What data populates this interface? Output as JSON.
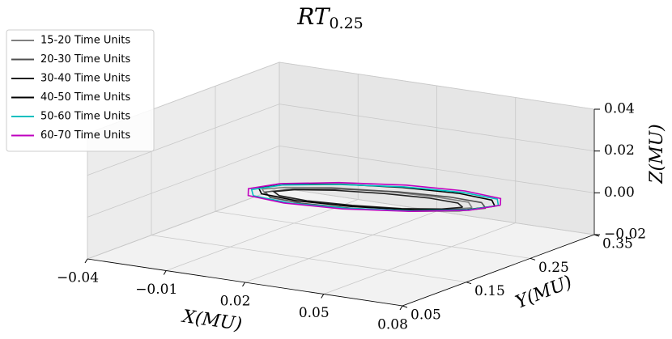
{
  "chart_data": {
    "type": "line3d",
    "title": "RT",
    "title_subscript": "0.25",
    "xlabel": "X(MU)",
    "ylabel": "Y(MU)",
    "zlabel": "Z(MU)",
    "xlim": [
      -0.04,
      0.08
    ],
    "ylim": [
      0.05,
      0.35
    ],
    "zlim": [
      -0.02,
      0.04
    ],
    "xticks": [
      {
        "value": -0.04,
        "label": "−0.04"
      },
      {
        "value": -0.01,
        "label": "−0.01"
      },
      0.02,
      0.05,
      0.08
    ],
    "yticks": [
      0.05,
      0.15,
      0.25,
      0.35
    ],
    "zticks": [
      {
        "value": -0.02,
        "label": "−0.02"
      },
      {
        "value": 0,
        "label": "0.00"
      },
      0.02,
      0.04
    ],
    "grid": true,
    "legend_position": "upper left",
    "series": [
      {
        "name": "15-20 Time Units",
        "color": "#808080",
        "x": [
          0.07,
          0.065,
          0.05,
          0.03,
          0.01,
          -0.005,
          -0.01,
          -0.005,
          0.01,
          0.03,
          0.05,
          0.065,
          0.07
        ],
        "y": [
          0.2,
          0.215,
          0.226,
          0.23,
          0.226,
          0.215,
          0.2,
          0.185,
          0.174,
          0.17,
          0.174,
          0.185,
          0.2
        ],
        "z": [
          0.008,
          0.008,
          0.0065,
          0.005,
          0.0035,
          0.002,
          0.002,
          0.002,
          0.0035,
          0.005,
          0.0065,
          0.008,
          0.008
        ]
      },
      {
        "name": "20-30 Time Units",
        "color": "#505050",
        "x": [
          0.074,
          0.068,
          0.053,
          0.032,
          0.011,
          -0.004,
          -0.01,
          -0.004,
          0.011,
          0.032,
          0.053,
          0.068,
          0.074
        ],
        "y": [
          0.205,
          0.223,
          0.235,
          0.24,
          0.235,
          0.223,
          0.205,
          0.188,
          0.175,
          0.17,
          0.175,
          0.188,
          0.205
        ],
        "z": [
          0.008,
          0.0075,
          0.006,
          0.004,
          0.002,
          0.0005,
          0,
          0.0005,
          0.002,
          0.004,
          0.006,
          0.0075,
          0.008
        ]
      },
      {
        "name": "30-40 Time Units",
        "color": "#202020",
        "x": [
          0.064,
          0.059,
          0.046,
          0.028,
          0.01,
          -0.003,
          -0.008,
          -0.003,
          0.01,
          0.028,
          0.046,
          0.059,
          0.064
        ],
        "y": [
          0.21,
          0.223,
          0.232,
          0.235,
          0.232,
          0.223,
          0.21,
          0.198,
          0.188,
          0.185,
          0.188,
          0.198,
          0.21
        ],
        "z": [
          0.006,
          0.0056,
          0.0045,
          0.003,
          0.0015,
          0.0004,
          0,
          0.0004,
          0.0015,
          0.003,
          0.0045,
          0.0056,
          0.006
        ]
      },
      {
        "name": "40-50 Time Units",
        "color": "#000000",
        "x": [
          0.075,
          0.069,
          0.053,
          0.03,
          0.008,
          -0.009,
          -0.015,
          -0.009,
          0.008,
          0.03,
          0.053,
          0.069,
          0.075
        ],
        "y": [
          0.215,
          0.235,
          0.25,
          0.255,
          0.25,
          0.235,
          0.215,
          0.195,
          0.18,
          0.175,
          0.18,
          0.195,
          0.215
        ],
        "z": [
          0.008,
          0.0075,
          0.006,
          0.004,
          0.002,
          0.0005,
          0,
          0.0005,
          0.002,
          0.004,
          0.006,
          0.0075,
          0.008
        ]
      },
      {
        "name": "50-60 Time Units",
        "color": "#00bfbf",
        "x": [
          0.08,
          0.074,
          0.057,
          0.033,
          0.01,
          -0.008,
          -0.014,
          -0.008,
          0.01,
          0.033,
          0.057,
          0.074,
          0.08
        ],
        "y": [
          0.2,
          0.223,
          0.239,
          0.245,
          0.239,
          0.223,
          0.2,
          0.178,
          0.161,
          0.155,
          0.161,
          0.178,
          0.2
        ],
        "z": [
          0.011,
          0.0103,
          0.0085,
          0.006,
          0.0035,
          0.0017,
          0.001,
          0.0017,
          0.0035,
          0.006,
          0.0085,
          0.0103,
          0.011
        ]
      },
      {
        "name": "60-70 Time Units",
        "color": "#bf00bf",
        "x": [
          0.082,
          0.076,
          0.058,
          0.034,
          0.01,
          -0.008,
          -0.014,
          -0.008,
          0.01,
          0.034,
          0.058,
          0.076,
          0.082
        ],
        "y": [
          0.195,
          0.22,
          0.238,
          0.245,
          0.238,
          0.22,
          0.195,
          0.17,
          0.152,
          0.145,
          0.152,
          0.17,
          0.195
        ],
        "z": [
          0.012,
          0.0113,
          0.0095,
          0.007,
          0.0045,
          0.0027,
          0.002,
          0.0027,
          0.0045,
          0.007,
          0.0095,
          0.0113,
          0.012
        ]
      }
    ]
  }
}
